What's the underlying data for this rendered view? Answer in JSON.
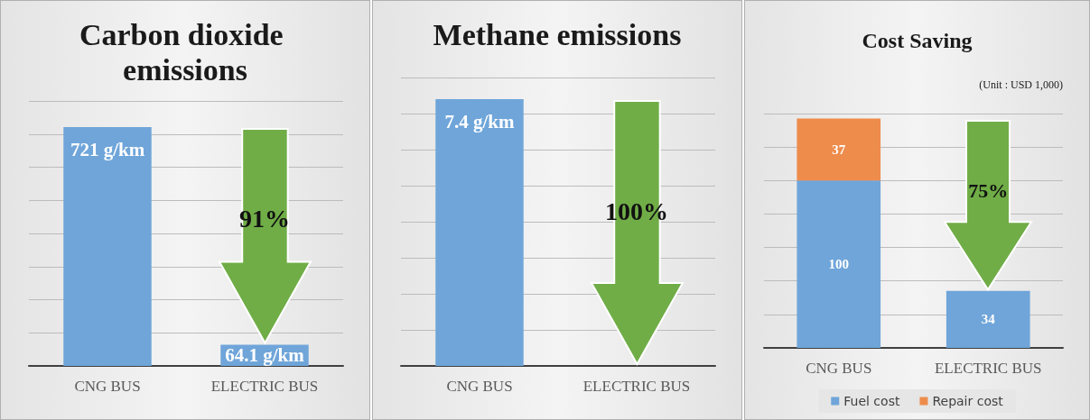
{
  "chart_data": [
    {
      "type": "bar",
      "title": "Carbon dioxide emissions",
      "categories": [
        "CNG BUS",
        "ELECTRIC BUS"
      ],
      "values": [
        721,
        64.1
      ],
      "value_labels": [
        "721 g/km",
        "64.1 g/km"
      ],
      "color": "#6fa5d9",
      "ylim": [
        0,
        800
      ],
      "yticks": [
        {
          "value": 0,
          "label": null
        },
        {
          "value": 100,
          "label": null
        },
        {
          "value": 200,
          "label": null
        },
        {
          "value": 300,
          "label": null
        },
        {
          "value": 400,
          "label": null
        },
        {
          "value": 500,
          "label": null
        },
        {
          "value": 600,
          "label": null
        },
        {
          "value": 700,
          "label": null
        },
        {
          "value": 800,
          "label": null
        }
      ],
      "grid": "y",
      "tick_labels": "x",
      "annotations": [
        "91%"
      ]
    },
    {
      "type": "bar",
      "title": "Methane emissions",
      "categories": [
        "CNG BUS",
        "ELECTRIC BUS"
      ],
      "values": [
        7.4,
        0
      ],
      "value_labels": [
        "7.4 g/km",
        null
      ],
      "color": "#6fa5d9",
      "ylim": [
        0,
        8
      ],
      "yticks": [
        {
          "value": 0,
          "label": null
        },
        {
          "value": 1,
          "label": null
        },
        {
          "value": 2,
          "label": null
        },
        {
          "value": 3,
          "label": null
        },
        {
          "value": 4,
          "label": null
        },
        {
          "value": 5,
          "label": null
        },
        {
          "value": 6,
          "label": null
        },
        {
          "value": 7,
          "label": null
        },
        {
          "value": 8,
          "label": null
        }
      ],
      "grid": "y",
      "tick_labels": "x",
      "annotations": [
        "100%"
      ]
    },
    {
      "type": "bar",
      "title": "Cost Saving",
      "categories": [
        "CNG BUS",
        "ELECTRIC BUS"
      ],
      "stacked": true,
      "legend": "bottom",
      "series": [
        {
          "name": "Fuel cost",
          "color": "#6fa5d9",
          "values": [
            100,
            34
          ],
          "value_labels": [
            "100",
            "34"
          ]
        },
        {
          "name": "Repair cost",
          "color": "#ee8c4c",
          "values": [
            37,
            null
          ],
          "value_labels": [
            "37",
            null
          ]
        }
      ],
      "ylim": [
        0,
        140
      ],
      "yticks": [
        {
          "value": 0,
          "label": null
        },
        {
          "value": 20,
          "label": null
        },
        {
          "value": 40,
          "label": null
        },
        {
          "value": 60,
          "label": null
        },
        {
          "value": 80,
          "label": null
        },
        {
          "value": 100,
          "label": null
        },
        {
          "value": 120,
          "label": null
        },
        {
          "value": 140,
          "label": null
        }
      ],
      "grid": "y",
      "tick_labels": "x",
      "annotations": [
        "(Unit : USD 1,000)",
        "75%"
      ]
    }
  ]
}
